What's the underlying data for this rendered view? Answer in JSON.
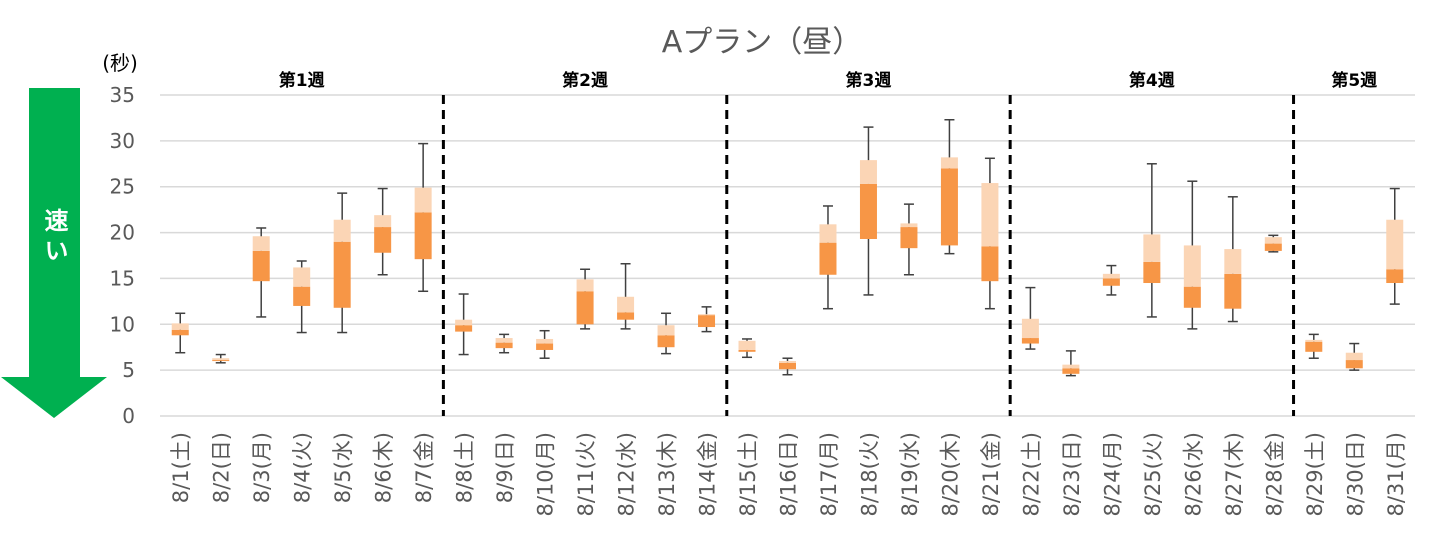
{
  "chart_data": {
    "type": "boxplot",
    "title": "Aプラン（昼）",
    "ylabel": "(秒)",
    "ylim": [
      0,
      35
    ],
    "yticks": [
      0,
      5,
      10,
      15,
      20,
      25,
      30,
      35
    ],
    "grid": true,
    "arrow_label": "速い",
    "weeks": [
      {
        "label": "第1週",
        "start": 0,
        "end": 7
      },
      {
        "label": "第2週",
        "start": 7,
        "end": 14
      },
      {
        "label": "第3週",
        "start": 14,
        "end": 21
      },
      {
        "label": "第4週",
        "start": 21,
        "end": 28
      },
      {
        "label": "第5週",
        "start": 28,
        "end": 31
      }
    ],
    "categories": [
      "8/1(土)",
      "8/2(日)",
      "8/3(月)",
      "8/4(火)",
      "8/5(水)",
      "8/6(木)",
      "8/7(金)",
      "8/8(土)",
      "8/9(日)",
      "8/10(月)",
      "8/11(火)",
      "8/12(水)",
      "8/13(木)",
      "8/14(金)",
      "8/15(土)",
      "8/16(日)",
      "8/17(月)",
      "8/18(火)",
      "8/19(水)",
      "8/20(木)",
      "8/21(金)",
      "8/22(土)",
      "8/23(日)",
      "8/24(月)",
      "8/25(火)",
      "8/26(水)",
      "8/27(木)",
      "8/28(金)",
      "8/29(土)",
      "8/30(日)",
      "8/31(月)"
    ],
    "series": {
      "min": [
        6.9,
        5.8,
        10.8,
        9.1,
        9.1,
        15.4,
        13.6,
        6.7,
        6.9,
        6.3,
        9.5,
        9.5,
        6.8,
        9.2,
        6.4,
        4.5,
        11.7,
        13.2,
        15.4,
        17.7,
        11.7,
        7.3,
        4.4,
        13.2,
        10.8,
        9.5,
        10.3,
        17.9,
        6.3,
        5.0,
        12.2
      ],
      "q1": [
        8.8,
        6.0,
        14.7,
        12.0,
        11.8,
        17.8,
        17.1,
        9.2,
        7.4,
        7.2,
        10.0,
        10.5,
        7.5,
        9.7,
        7.0,
        5.1,
        15.4,
        19.3,
        18.3,
        18.6,
        14.7,
        7.9,
        4.6,
        14.2,
        14.5,
        11.8,
        11.7,
        18.0,
        7.0,
        5.2,
        14.5
      ],
      "median": [
        9.4,
        6.1,
        18.0,
        14.1,
        19.0,
        20.6,
        22.2,
        9.9,
        8.0,
        7.9,
        13.6,
        11.3,
        8.8,
        11.0,
        7.2,
        5.8,
        18.9,
        25.3,
        20.6,
        27.0,
        18.5,
        8.5,
        5.2,
        15.0,
        16.8,
        14.1,
        15.5,
        18.8,
        8.1,
        6.1,
        16.0
      ],
      "q3": [
        10.1,
        6.3,
        19.6,
        16.2,
        21.4,
        21.9,
        24.9,
        10.5,
        8.5,
        8.4,
        14.9,
        13.0,
        9.9,
        11.1,
        8.2,
        6.0,
        20.9,
        27.9,
        21.0,
        28.2,
        25.4,
        10.6,
        5.6,
        15.5,
        19.8,
        18.6,
        18.2,
        19.5,
        8.3,
        6.9,
        21.4
      ],
      "max": [
        11.2,
        6.7,
        20.5,
        16.9,
        24.3,
        24.8,
        29.7,
        13.3,
        8.9,
        9.3,
        16.0,
        16.6,
        11.2,
        11.9,
        8.4,
        6.3,
        22.9,
        31.5,
        23.1,
        32.3,
        28.1,
        14.0,
        7.1,
        16.4,
        27.5,
        25.6,
        23.9,
        19.7,
        8.9,
        7.9,
        24.8
      ]
    },
    "colors": {
      "lower_box": "#F79646",
      "upper_box": "#FBD5B5",
      "whisker": "#404040",
      "grid": "#D9D9D9",
      "arrow": "#00B050"
    }
  }
}
